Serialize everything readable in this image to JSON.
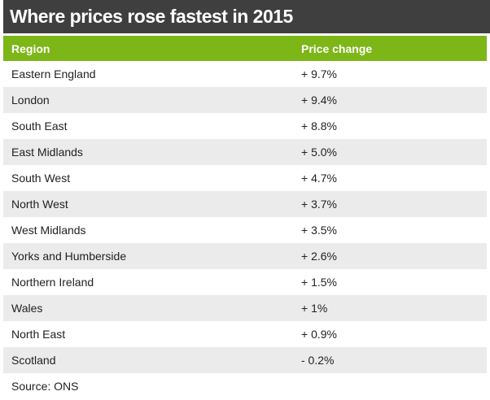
{
  "title": "Where prices rose fastest in 2015",
  "colors": {
    "title_bg": "#3f3f3f",
    "header_bg": "#7cb617",
    "stripe": "#ebebeb"
  },
  "table": {
    "headers": [
      "Region",
      "Price change"
    ],
    "rows": [
      [
        "Eastern England",
        "+ 9.7%"
      ],
      [
        "London",
        "+ 9.4%"
      ],
      [
        "South East",
        "+ 8.8%"
      ],
      [
        "East Midlands",
        "+ 5.0%"
      ],
      [
        "South West",
        "+ 4.7%"
      ],
      [
        "North West",
        "+ 3.7%"
      ],
      [
        "West Midlands",
        "+ 3.5%"
      ],
      [
        "Yorks and Humberside",
        "+ 2.6%"
      ],
      [
        "Northern Ireland",
        "+ 1.5%"
      ],
      [
        "Wales",
        "+ 1%"
      ],
      [
        "North East",
        "+ 0.9%"
      ],
      [
        "Scotland",
        "- 0.2%"
      ]
    ]
  },
  "chart_data": {
    "type": "table",
    "title": "Where prices rose fastest in 2015",
    "columns": [
      "Region",
      "Price change"
    ],
    "categories": [
      "Eastern England",
      "London",
      "South East",
      "East Midlands",
      "South West",
      "North West",
      "West Midlands",
      "Yorks and Humberside",
      "Northern Ireland",
      "Wales",
      "North East",
      "Scotland"
    ],
    "values": [
      9.7,
      9.4,
      8.8,
      5.0,
      4.7,
      3.7,
      3.5,
      2.6,
      1.5,
      1,
      0.9,
      -0.2
    ]
  },
  "source": "Source: ONS"
}
